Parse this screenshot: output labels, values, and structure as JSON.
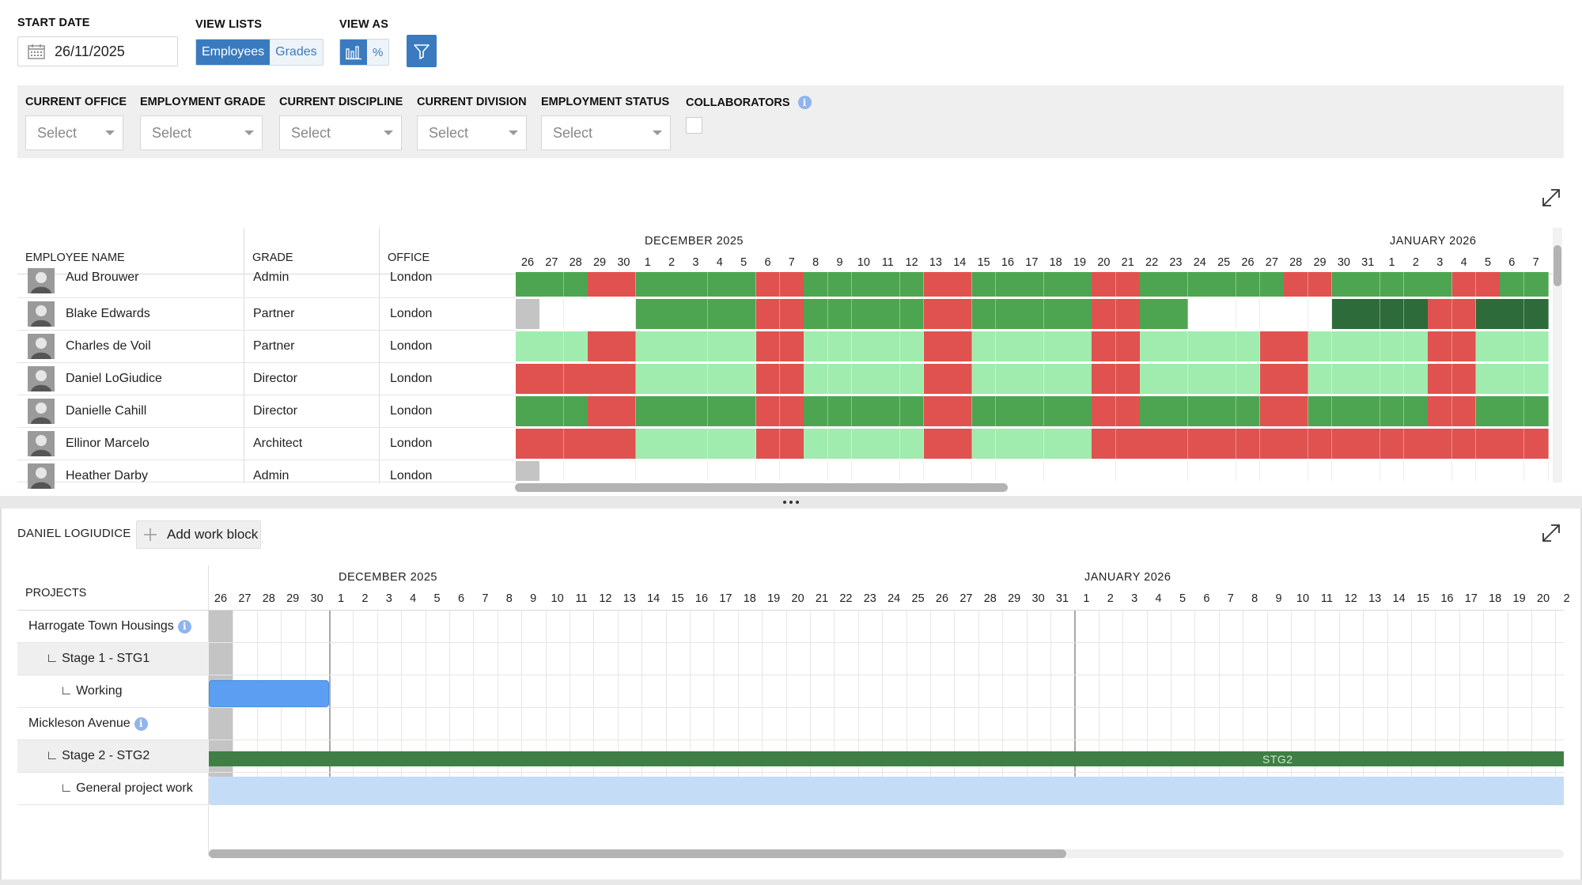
{
  "header": {
    "start_date_label": "START DATE",
    "start_date_value": "26/11/2025",
    "view_lists_label": "VIEW LISTS",
    "view_lists_options": [
      "Employees",
      "Grades"
    ],
    "view_lists_selected": "Employees",
    "view_as_label": "VIEW AS",
    "view_as_options": [
      "bar-chart",
      "%"
    ],
    "view_as_percent": "%",
    "icons": {
      "date": "calendar-icon",
      "view_as": "bar-chart-icon",
      "filter": "filter-icon",
      "expand": "expand-icon"
    }
  },
  "filters": {
    "office_label": "CURRENT OFFICE",
    "grade_label": "EMPLOYMENT GRADE",
    "discipline_label": "CURRENT DISCIPLINE",
    "division_label": "CURRENT DIVISION",
    "status_label": "EMPLOYMENT STATUS",
    "collaborators_label": "COLLABORATORS",
    "select_placeholder": "Select",
    "info_glyph": "i"
  },
  "employees_table": {
    "headers": {
      "name": "EMPLOYEE NAME",
      "grade": "GRADE",
      "office": "OFFICE"
    },
    "month_dec": "DECEMBER 2025",
    "month_jan": "JANUARY 2026",
    "days": [
      "26",
      "27",
      "28",
      "29",
      "30",
      "1",
      "2",
      "3",
      "4",
      "5",
      "6",
      "7",
      "8",
      "9",
      "10",
      "11",
      "12",
      "13",
      "14",
      "15",
      "16",
      "17",
      "18",
      "19",
      "20",
      "21",
      "22",
      "23",
      "24",
      "25",
      "26",
      "27",
      "28",
      "29",
      "30",
      "31",
      "1",
      "2",
      "3",
      "4",
      "5",
      "6",
      "7"
    ],
    "rows": [
      {
        "name": "Aud Brouwer",
        "grade": "Admin",
        "office": "London",
        "cells": "GGGRRGGGGGRRGGGGGRRGGGGGRRGGGGGGRRGGGGGRRGGG"
      },
      {
        "name": "Blake Edwards",
        "grade": "Partner",
        "office": "London",
        "cells": "SWWWWGGGGGRRGGGGGRRGGGGGRRGGWWWWWWDDDDRRDDD"
      },
      {
        "name": "Charles de Voil",
        "grade": "Partner",
        "office": "London",
        "cells": "LLLRRLLLLLRRLLLLLRRLLLLLRRLLLLLRRLLLLLRRLLL"
      },
      {
        "name": "Daniel LoGiudice",
        "grade": "Director",
        "office": "London",
        "cells": "RRRRRLLLLLRRLLLLLRRLLLLLRRLLLLLRRLLLLLRRLLL"
      },
      {
        "name": "Danielle Cahill",
        "grade": "Director",
        "office": "London",
        "cells": "GGGRRGGGGGRRGGGGGRRGGGGGRRGGGGGRRGGGGGRRGGG"
      },
      {
        "name": "Ellinor Marcelo",
        "grade": "Architect",
        "office": "London",
        "cells": "RRRRRLLLLLRRLLLLLRRLLLLLRRRRRRRRRRRRRRRRRRR"
      },
      {
        "name": "Heather Darby",
        "grade": "Admin",
        "office": "London",
        "cells": "SWWWWWWWWWWWWWWWWWWWWWWWWWWWWWWWWWWWWWWWWWW"
      }
    ]
  },
  "colors": {
    "green": "#4ea551",
    "light_green": "#a0ecae",
    "red": "#e0524f",
    "dark_green": "#2e6b3a",
    "grey": "#c4c4c4",
    "white": "#ffffff",
    "accent": "#3a7bbf",
    "stage_bar": "#3f7f45",
    "working_bar": "#5b9ef2",
    "general_bar": "#c5dcf6"
  },
  "detail": {
    "employee_title": "DANIEL LOGIUDICE",
    "add_work_block_label": "Add work block",
    "add_icon": "plus-icon",
    "projects_header": "PROJECTS",
    "month_dec": "DECEMBER 2025",
    "month_jan": "JANUARY 2026",
    "days": [
      "26",
      "27",
      "28",
      "29",
      "30",
      "1",
      "2",
      "3",
      "4",
      "5",
      "6",
      "7",
      "8",
      "9",
      "10",
      "11",
      "12",
      "13",
      "14",
      "15",
      "16",
      "17",
      "18",
      "19",
      "20",
      "21",
      "22",
      "23",
      "24",
      "25",
      "26",
      "27",
      "28",
      "29",
      "30",
      "31",
      "1",
      "2",
      "3",
      "4",
      "5",
      "6",
      "7",
      "8",
      "9",
      "10",
      "11",
      "12",
      "13",
      "14",
      "15",
      "16",
      "17",
      "18",
      "19",
      "20",
      "2"
    ],
    "projects": [
      {
        "label": "Harrogate Town Housings",
        "info": true,
        "indent": 0
      },
      {
        "label": "∟ Stage 1 - STG1",
        "indent": 1
      },
      {
        "label": "∟ Working",
        "indent": 2
      },
      {
        "label": "Mickleson Avenue",
        "info": true,
        "indent": 0
      },
      {
        "label": "∟ Stage 2 - STG2",
        "indent": 1
      },
      {
        "label": "∟ General project work",
        "indent": 2
      }
    ],
    "stg2_bar_label": "STG2"
  }
}
